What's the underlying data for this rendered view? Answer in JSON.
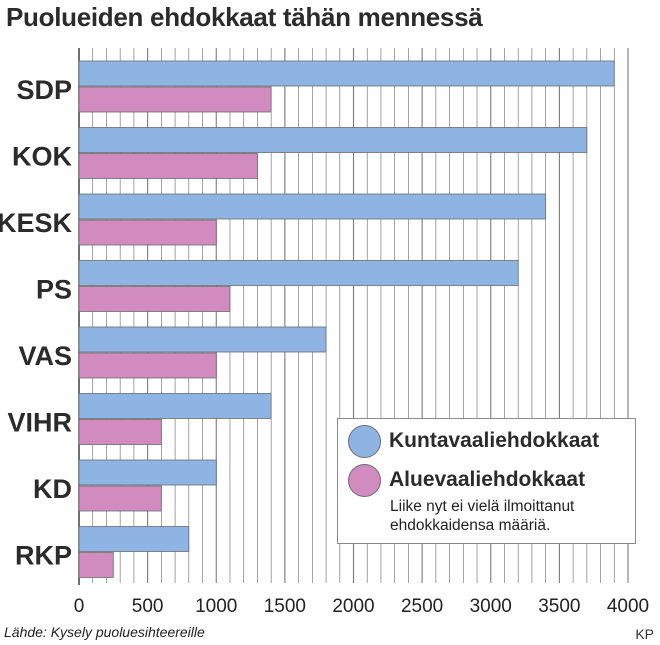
{
  "title": "Puolueiden ehdokkaat tähän mennessä",
  "source": "Lähde: Kysely puoluesihteereille",
  "credit": "KP",
  "colors": {
    "kunta": "#8db4e2",
    "alue": "#d18bbf",
    "gridline": "#7a7a7a",
    "bar_outline": "#6c6c6c"
  },
  "legend": {
    "items": [
      {
        "label": "Kuntavaaliehdokkaat",
        "color": "#8db4e2"
      },
      {
        "label": "Aluevaaliehdokkaat",
        "color": "#d18bbf"
      }
    ],
    "note": "Liike nyt ei vielä ilmoittanut ehdokkaidensa määriä."
  },
  "chart_data": {
    "type": "bar",
    "orientation": "horizontal",
    "categories": [
      "SDP",
      "KOK",
      "KESK",
      "PS",
      "VAS",
      "VIHR",
      "KD",
      "RKP"
    ],
    "series": [
      {
        "name": "Kuntavaaliehdokkaat",
        "values": [
          3900,
          3700,
          3400,
          3200,
          1800,
          1400,
          1000,
          800
        ]
      },
      {
        "name": "Aluevaaliehdokkaat",
        "values": [
          1400,
          1300,
          1000,
          1100,
          1000,
          600,
          600,
          250
        ]
      }
    ],
    "xlim": [
      0,
      4000
    ],
    "xticks": [
      "0",
      "500",
      "1000",
      "1500",
      "2000",
      "2500",
      "3000",
      "3500",
      "4000"
    ],
    "minor_grid_step": 100,
    "major_grid_step": 500,
    "grid": true,
    "legend_position": "bottom-right"
  }
}
